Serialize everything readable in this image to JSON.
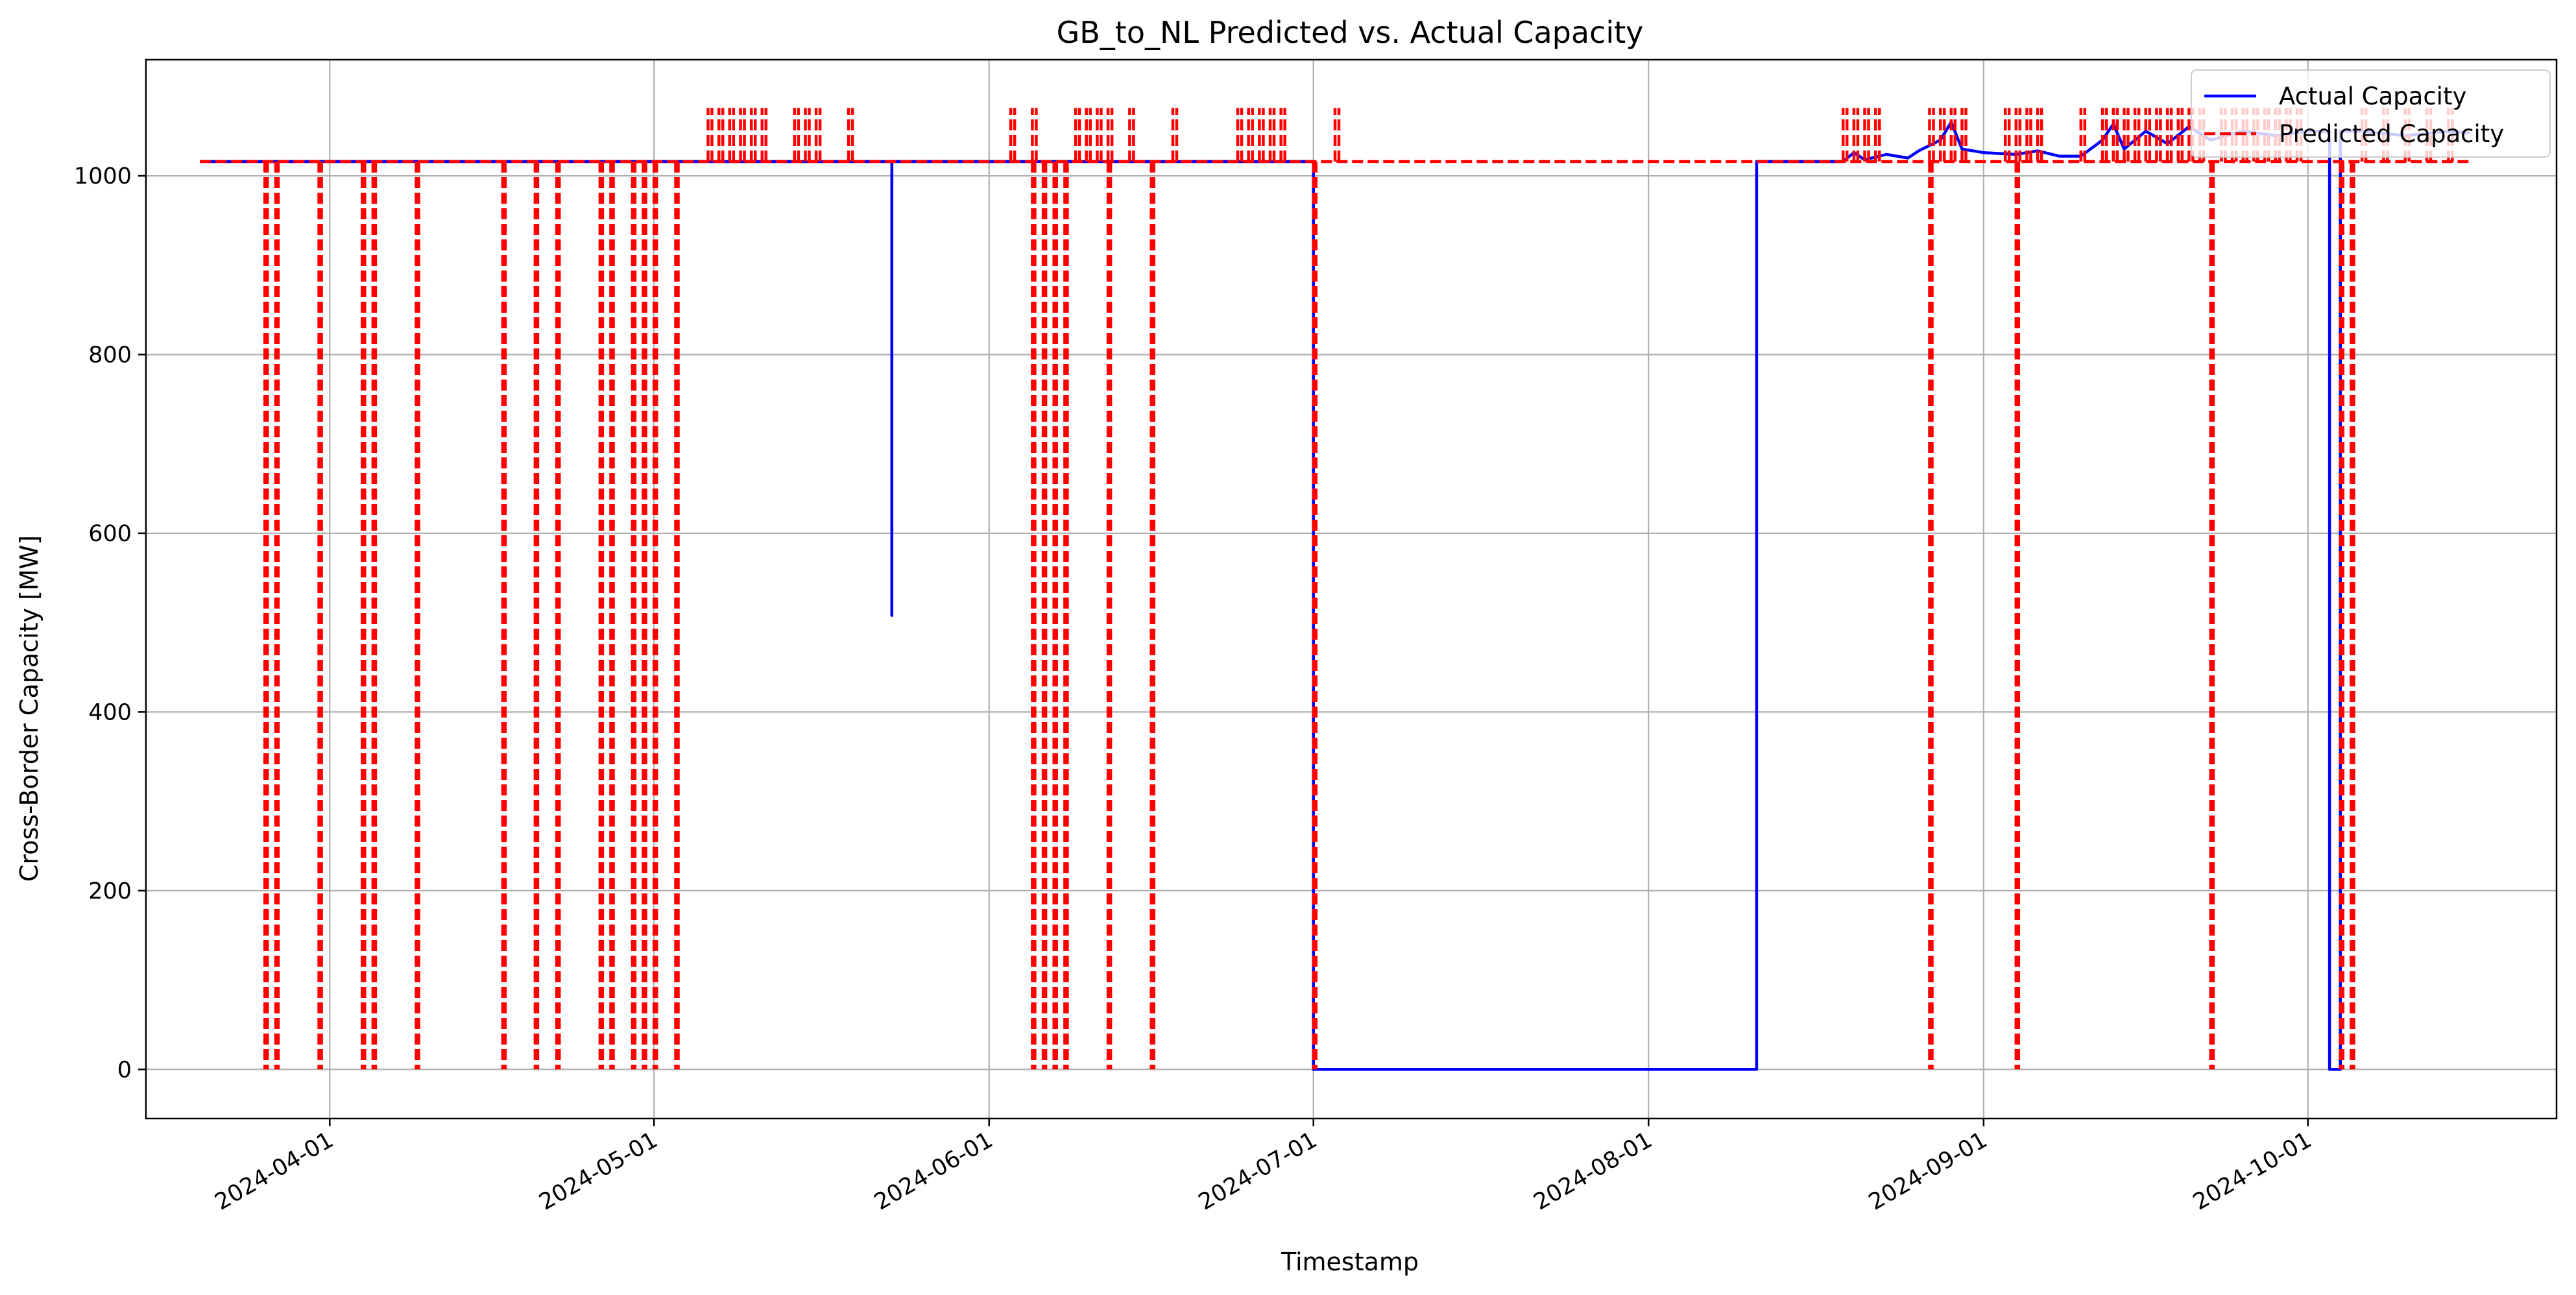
{
  "chart_data": {
    "type": "line",
    "title": "GB_to_NL Predicted vs. Actual Capacity",
    "xlabel": "Timestamp",
    "ylabel": "Cross-Border Capacity [MW]",
    "x_type": "date",
    "xlim": [
      "2024-03-15",
      "2024-10-24"
    ],
    "ylim": [
      -55,
      1130
    ],
    "xticks": [
      "2024-04-01",
      "2024-05-01",
      "2024-06-01",
      "2024-07-01",
      "2024-08-01",
      "2024-09-01",
      "2024-10-01"
    ],
    "yticks": [
      0,
      200,
      400,
      600,
      800,
      1000
    ],
    "grid": true,
    "legend_position": "upper right",
    "series": [
      {
        "name": "Actual Capacity",
        "color": "#0000ff",
        "style": "solid",
        "points": [
          [
            "2024-03-20",
            1016
          ],
          [
            "2024-05-23",
            1016
          ],
          [
            "2024-05-23",
            508
          ],
          [
            "2024-05-23",
            1016
          ],
          [
            "2024-07-01",
            1016
          ],
          [
            "2024-07-01",
            0
          ],
          [
            "2024-08-11",
            0
          ],
          [
            "2024-08-11",
            1016
          ],
          [
            "2024-08-19",
            1016
          ],
          [
            "2024-08-20",
            1026
          ],
          [
            "2024-08-21",
            1018
          ],
          [
            "2024-08-23",
            1024
          ],
          [
            "2024-08-25",
            1020
          ],
          [
            "2024-08-26",
            1028
          ],
          [
            "2024-08-28",
            1040
          ],
          [
            "2024-08-29",
            1060
          ],
          [
            "2024-08-30",
            1030
          ],
          [
            "2024-09-01",
            1026
          ],
          [
            "2024-09-04",
            1024
          ],
          [
            "2024-09-06",
            1028
          ],
          [
            "2024-09-08",
            1022
          ],
          [
            "2024-09-10",
            1022
          ],
          [
            "2024-09-12",
            1040
          ],
          [
            "2024-09-13",
            1058
          ],
          [
            "2024-09-14",
            1030
          ],
          [
            "2024-09-16",
            1050
          ],
          [
            "2024-09-18",
            1036
          ],
          [
            "2024-09-20",
            1055
          ],
          [
            "2024-09-22",
            1040
          ],
          [
            "2024-09-25",
            1050
          ],
          [
            "2024-09-28",
            1045
          ],
          [
            "2024-10-01",
            1050
          ],
          [
            "2024-10-03",
            1050
          ],
          [
            "2024-10-03",
            0
          ],
          [
            "2024-10-04",
            0
          ],
          [
            "2024-10-04",
            700
          ],
          [
            "2024-10-04",
            0
          ],
          [
            "2024-10-04",
            1050
          ],
          [
            "2024-10-06",
            1050
          ],
          [
            "2024-10-10",
            1045
          ],
          [
            "2024-10-14",
            1050
          ],
          [
            "2024-10-16",
            1048
          ]
        ]
      },
      {
        "name": "Predicted Capacity",
        "color": "#ff0000",
        "style": "dashed",
        "baseline": 1016,
        "start": "2024-03-20",
        "end": "2024-10-16",
        "dips": [
          "2024-03-26",
          "2024-03-27",
          "2024-03-31",
          "2024-04-04",
          "2024-04-05",
          "2024-04-09",
          "2024-04-17",
          "2024-04-20",
          "2024-04-22",
          "2024-04-26",
          "2024-04-27",
          "2024-04-29",
          "2024-04-29",
          "2024-04-30",
          "2024-04-30",
          "2024-05-01",
          "2024-05-03",
          "2024-05-03",
          "2024-06-05",
          "2024-06-06",
          "2024-06-07",
          "2024-06-08",
          "2024-06-12",
          "2024-06-12",
          "2024-06-16",
          "2024-07-01",
          "2024-08-27",
          "2024-09-04",
          "2024-09-22",
          "2024-10-04",
          "2024-10-05"
        ],
        "spikes": [
          "2024-05-06",
          "2024-05-07",
          "2024-05-08",
          "2024-05-09",
          "2024-05-10",
          "2024-05-11",
          "2024-05-14",
          "2024-05-15",
          "2024-05-16",
          "2024-05-19",
          "2024-06-03",
          "2024-06-05",
          "2024-06-09",
          "2024-06-10",
          "2024-06-11",
          "2024-06-12",
          "2024-06-14",
          "2024-06-18",
          "2024-06-24",
          "2024-06-25",
          "2024-06-26",
          "2024-06-27",
          "2024-06-28",
          "2024-07-03",
          "2024-08-19",
          "2024-08-20",
          "2024-08-21",
          "2024-08-22",
          "2024-08-27",
          "2024-08-28",
          "2024-08-29",
          "2024-08-30",
          "2024-09-03",
          "2024-09-04",
          "2024-09-05",
          "2024-09-06",
          "2024-09-10",
          "2024-09-12",
          "2024-09-13",
          "2024-09-14",
          "2024-09-15",
          "2024-09-16",
          "2024-09-17",
          "2024-09-18",
          "2024-09-19",
          "2024-09-20",
          "2024-09-21",
          "2024-09-23",
          "2024-09-24",
          "2024-09-25",
          "2024-09-26",
          "2024-09-27",
          "2024-09-28",
          "2024-09-29",
          "2024-09-30",
          "2024-10-06",
          "2024-10-08",
          "2024-10-10",
          "2024-10-12",
          "2024-10-14"
        ],
        "spike_high": 1076
      }
    ]
  }
}
